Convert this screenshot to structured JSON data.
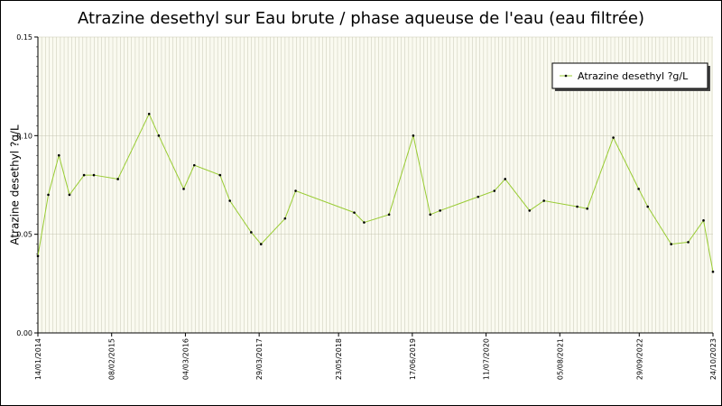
{
  "chart_data": {
    "type": "line",
    "title": "Atrazine desethyl sur Eau brute / phase aqueuse de l'eau (eau filtrée)",
    "y_label": "Atrazine desethyl ?g/L",
    "x": [
      "14/01/2014",
      "10/03/2014",
      "05/05/2014",
      "30/06/2014",
      "15/09/2014",
      "06/11/2014",
      "13/03/2015",
      "25/08/2015",
      "15/10/2015",
      "24/02/2016",
      "20/04/2016",
      "03/09/2016",
      "25/10/2016",
      "15/02/2017",
      "08/04/2017",
      "13/08/2017",
      "08/10/2017",
      "14/08/2018",
      "05/10/2018",
      "14/02/2019",
      "22/06/2019",
      "20/09/2019",
      "11/11/2019",
      "30/05/2020",
      "24/08/2020",
      "20/10/2020",
      "26/02/2021",
      "13/05/2021",
      "05/11/2021",
      "28/12/2021",
      "15/05/2022",
      "26/09/2022",
      "13/11/2022",
      "17/03/2023",
      "15/06/2023",
      "04/09/2023",
      "24/10/2023"
    ],
    "series": [
      {
        "name": "Atrazine desethyl ?g/L",
        "color": "#99cc33",
        "values": [
          0.039,
          0.07,
          0.09,
          0.07,
          0.08,
          0.08,
          0.078,
          0.111,
          0.1,
          0.073,
          0.085,
          0.08,
          0.067,
          0.051,
          0.045,
          0.058,
          0.072,
          0.061,
          0.056,
          0.06,
          0.1,
          0.06,
          0.062,
          0.069,
          0.072,
          0.078,
          0.062,
          0.067,
          0.064,
          0.063,
          0.099,
          0.073,
          0.064,
          0.045,
          0.046,
          0.057,
          0.031
        ]
      }
    ],
    "xlim": [
      "14/01/2014",
      "24/10/2023"
    ],
    "xticks": [
      "14/01/2014",
      "08/02/2015",
      "04/03/2016",
      "29/03/2017",
      "23/05/2018",
      "17/06/2019",
      "11/07/2020",
      "05/08/2021",
      "29/09/2022",
      "24/10/2023"
    ],
    "ylim": [
      0,
      0.15
    ],
    "yticks": [
      {
        "value": 0,
        "label": "0.00"
      },
      {
        "value": 0.05,
        "label": "0.05"
      },
      {
        "value": 0.1,
        "label": "0.10"
      },
      {
        "value": 0.15,
        "label": "0.15"
      }
    ],
    "grid": true,
    "legend": "top-right"
  }
}
